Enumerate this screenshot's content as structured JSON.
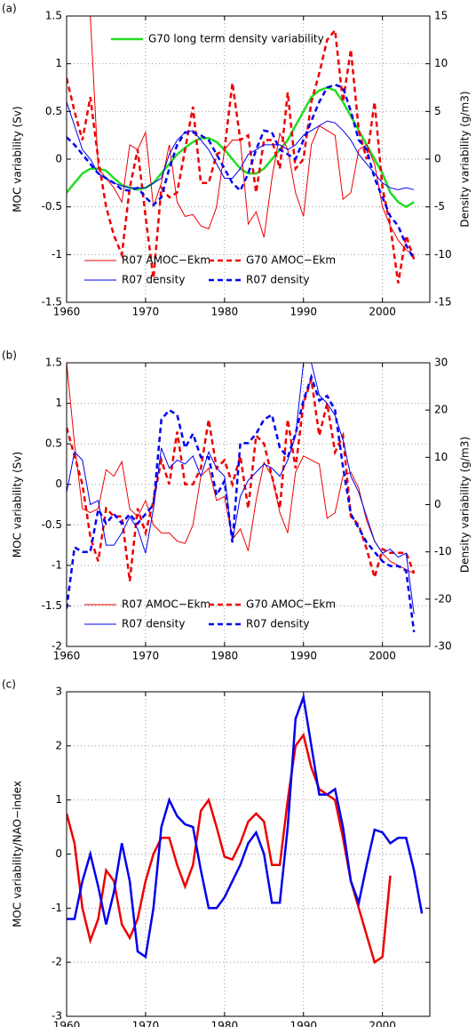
{
  "chart_data": [
    {
      "type": "line",
      "label": "(a)",
      "ylabel": "MOC variability (Sv)",
      "y2label": "Density variability (g/m3)",
      "xlim": [
        1960,
        2006
      ],
      "xticks": [
        1960,
        1970,
        1980,
        1990,
        2000
      ],
      "ylim": [
        -1.5,
        1.5
      ],
      "yticks": [
        -1.5,
        -1,
        -0.5,
        0,
        0.5,
        1,
        1.5
      ],
      "y2lim": [
        -15,
        15
      ],
      "y2ticks": [
        -15,
        -10,
        -5,
        0,
        5,
        10,
        15
      ],
      "grid": true,
      "legend": "lower center",
      "x": [
        1960,
        1961,
        1962,
        1963,
        1964,
        1965,
        1966,
        1967,
        1968,
        1969,
        1970,
        1971,
        1972,
        1973,
        1974,
        1975,
        1976,
        1977,
        1978,
        1979,
        1980,
        1981,
        1982,
        1983,
        1984,
        1985,
        1986,
        1987,
        1988,
        1989,
        1990,
        1991,
        1992,
        1993,
        1994,
        1995,
        1996,
        1997,
        1998,
        1999,
        2000,
        2001,
        2002,
        2003,
        2004
      ],
      "series": [
        {
          "name": "G70 long term density variability",
          "color": "#22dd22",
          "width": 2.5,
          "legend": "upper left",
          "values": [
            -0.35,
            -0.25,
            -0.15,
            -0.1,
            -0.1,
            -0.12,
            -0.2,
            -0.27,
            -0.3,
            -0.32,
            -0.3,
            -0.25,
            -0.15,
            -0.05,
            0.05,
            0.12,
            0.18,
            0.22,
            0.22,
            0.18,
            0.1,
            0.0,
            -0.1,
            -0.15,
            -0.15,
            -0.1,
            0.0,
            0.1,
            0.2,
            0.35,
            0.5,
            0.65,
            0.72,
            0.75,
            0.72,
            0.6,
            0.45,
            0.3,
            0.15,
            0.0,
            -0.15,
            -0.35,
            -0.45,
            -0.5,
            -0.45
          ]
        },
        {
          "name": "R07 AMOC−Ekm",
          "color": "#ee0000",
          "width": 1,
          "values": [
            3.0,
            2.5,
            2.0,
            1.5,
            -0.1,
            -0.2,
            -0.3,
            -0.45,
            0.15,
            0.1,
            0.28,
            -0.5,
            -0.25,
            0.15,
            -0.45,
            -0.6,
            -0.58,
            -0.7,
            -0.73,
            -0.5,
            0.1,
            0.2,
            0.2,
            -0.68,
            -0.55,
            -0.82,
            -0.2,
            0.27,
            0.1,
            -0.35,
            -0.6,
            0.15,
            0.35,
            0.3,
            0.25,
            -0.42,
            -0.35,
            0.1,
            0.15,
            -0.05,
            -0.5,
            -0.7,
            -0.85,
            -0.95,
            -1.0
          ]
        },
        {
          "name": "G70 AMOC−Ekm",
          "color": "#ee0000",
          "width": 2.5,
          "dash": true,
          "axis": "y2",
          "values": [
            8.5,
            5,
            2,
            6.5,
            0,
            -5,
            -8,
            -10,
            -3,
            1,
            -6,
            -12.5,
            -3,
            -4,
            -3.5,
            1,
            5.5,
            -2.5,
            -2.5,
            0.5,
            1,
            8,
            2,
            2.5,
            -3.5,
            2,
            2,
            -1,
            7,
            -1,
            0,
            6,
            9,
            12.5,
            13.5,
            6,
            11.5,
            3,
            0,
            6,
            -3,
            -7,
            -13,
            -8,
            -10.5
          ]
        },
        {
          "name": "R07 density",
          "color": "#0000ee",
          "width": 1,
          "values": [
            0.6,
            0.35,
            0.1,
            0.0,
            -0.15,
            -0.2,
            -0.25,
            -0.28,
            -0.3,
            -0.3,
            -0.3,
            -0.25,
            -0.2,
            0.05,
            0.2,
            0.28,
            0.3,
            0.2,
            0.1,
            -0.05,
            -0.2,
            -0.2,
            -0.1,
            0.05,
            0.1,
            0.15,
            0.15,
            0.15,
            0.1,
            0.15,
            0.25,
            0.3,
            0.35,
            0.4,
            0.38,
            0.3,
            0.2,
            0.05,
            -0.05,
            -0.15,
            -0.25,
            -0.3,
            -0.32,
            -0.3,
            -0.32
          ]
        },
        {
          "name": "R07 density",
          "color": "#0000ee",
          "width": 2.5,
          "dash": true,
          "axis": "y2",
          "values": [
            2.3,
            1.5,
            0.5,
            -0.5,
            -1.5,
            -2,
            -2.5,
            -3.2,
            -3.3,
            -3,
            -4,
            -4.8,
            -4,
            -1,
            1.5,
            2.8,
            2.8,
            2.5,
            2,
            0.5,
            -1,
            -2.5,
            -3.3,
            -1.5,
            1,
            3,
            2.8,
            1,
            0.5,
            0,
            2,
            4,
            6,
            7.5,
            7.8,
            7.5,
            5,
            2,
            1,
            -2,
            -4,
            -6,
            -7,
            -9,
            -10.5
          ]
        }
      ]
    },
    {
      "type": "line",
      "label": "(b)",
      "ylabel": "MOC variability (Sv)",
      "y2label": "Density variability (g/m3)",
      "xlim": [
        1960,
        2006
      ],
      "xticks": [
        1960,
        1970,
        1980,
        1990,
        2000
      ],
      "ylim": [
        -2,
        1.5
      ],
      "yticks": [
        -2,
        -1.5,
        -1,
        -0.5,
        0,
        0.5,
        1,
        1.5
      ],
      "y2lim": [
        -30,
        30
      ],
      "y2ticks": [
        -30,
        -20,
        -10,
        0,
        10,
        20,
        30
      ],
      "grid": true,
      "legend": "lower center",
      "x": [
        1960,
        1961,
        1962,
        1963,
        1964,
        1965,
        1966,
        1967,
        1968,
        1969,
        1970,
        1971,
        1972,
        1973,
        1974,
        1975,
        1976,
        1977,
        1978,
        1979,
        1980,
        1981,
        1982,
        1983,
        1984,
        1985,
        1986,
        1987,
        1988,
        1989,
        1990,
        1991,
        1992,
        1993,
        1994,
        1995,
        1996,
        1997,
        1998,
        1999,
        2000,
        2001,
        2002,
        2003,
        2004
      ],
      "series": [
        {
          "name": "R07 AMOC−Ekm",
          "color": "#ee0000",
          "width": 1,
          "values": [
            1.5,
            0.5,
            -0.3,
            -0.35,
            -0.3,
            0.18,
            0.1,
            0.28,
            -0.3,
            -0.4,
            -0.2,
            -0.5,
            -0.6,
            -0.6,
            -0.7,
            -0.73,
            -0.5,
            0.1,
            0.2,
            -0.2,
            -0.15,
            -0.68,
            -0.55,
            -0.82,
            -0.2,
            0.27,
            0.1,
            -0.35,
            -0.6,
            0.15,
            0.35,
            0.3,
            0.25,
            -0.42,
            -0.35,
            0.1,
            0.15,
            -0.05,
            -0.45,
            -0.7,
            -0.85,
            -0.95,
            -1.0,
            -1.05,
            -1.1
          ]
        },
        {
          "name": "G70 AMOC−Ekm",
          "color": "#ee0000",
          "width": 2.5,
          "dash": true,
          "axis": "y2",
          "values": [
            16.3,
            10.3,
            4.3,
            -6.8,
            -12,
            -0.8,
            -2.5,
            -2.5,
            -16.2,
            -0.8,
            -6,
            0.9,
            9.4,
            4.3,
            15.4,
            4.3,
            4.3,
            7.7,
            18,
            7.7,
            9.4,
            4.3,
            10.3,
            -0.8,
            14.6,
            12.9,
            6,
            -0.8,
            18,
            7.7,
            21.4,
            26.5,
            14.6,
            21.4,
            11.1,
            14.6,
            -2.5,
            -4.3,
            -9.4,
            -15.4,
            -9.4,
            -10.2,
            -10.2,
            -10.2,
            -14.5
          ]
        },
        {
          "name": "R07 density",
          "color": "#0000ee",
          "width": 1,
          "values": [
            -0.1,
            0.4,
            0.3,
            -0.25,
            -0.2,
            -0.75,
            -0.75,
            -0.6,
            -0.4,
            -0.55,
            -0.85,
            -0.3,
            0.45,
            0.2,
            0.3,
            0.25,
            0.35,
            0.1,
            0.4,
            0.2,
            0.1,
            -0.7,
            -0.15,
            0.05,
            0.15,
            0.25,
            0.2,
            0.1,
            0.3,
            0.6,
            1.5,
            1.5,
            1.1,
            1.0,
            0.85,
            0.55,
            0.1,
            -0.1,
            -0.4,
            -0.7,
            -0.85,
            -0.8,
            -0.9,
            -0.85,
            -1.6
          ]
        },
        {
          "name": "R07 density",
          "color": "#0000ee",
          "width": 2.5,
          "dash": true,
          "axis": "y2",
          "values": [
            -22,
            -9,
            -10,
            -10,
            -1,
            -4,
            -2,
            -4,
            -2,
            -4,
            -2,
            0,
            18,
            20,
            19,
            12,
            15,
            10,
            10,
            2,
            5,
            -8,
            13,
            13,
            15,
            18,
            19,
            12,
            10,
            15,
            22,
            27,
            22,
            23,
            20,
            8,
            -2,
            -5,
            -8,
            -10,
            -12,
            -13,
            -13,
            -14,
            -27
          ]
        }
      ]
    },
    {
      "type": "line",
      "label": "(c)",
      "ylabel": "MOC variability/NAO−index",
      "xlim": [
        1960,
        2006
      ],
      "xticks": [
        1960,
        1970,
        1980,
        1990,
        2000
      ],
      "ylim": [
        -3,
        3
      ],
      "yticks": [
        -3,
        -2,
        -1,
        0,
        1,
        2,
        3
      ],
      "grid": true,
      "x": [
        1960,
        1961,
        1962,
        1963,
        1964,
        1965,
        1966,
        1967,
        1968,
        1969,
        1970,
        1971,
        1972,
        1973,
        1974,
        1975,
        1976,
        1977,
        1978,
        1979,
        1980,
        1981,
        1982,
        1983,
        1984,
        1985,
        1986,
        1987,
        1988,
        1989,
        1990,
        1991,
        1992,
        1993,
        1994,
        1995,
        1996,
        1997,
        1998,
        1999,
        2000,
        2001,
        2002,
        2003,
        2004,
        2005
      ],
      "series": [
        {
          "color": "#ee0000",
          "width": 2.5,
          "values": [
            0.75,
            0.2,
            -1.0,
            -1.6,
            -1.2,
            -0.3,
            -0.5,
            -1.3,
            -1.55,
            -1.2,
            -0.5,
            0.0,
            0.3,
            0.3,
            -0.2,
            -0.6,
            -0.2,
            0.8,
            1.0,
            0.5,
            -0.05,
            -0.1,
            0.2,
            0.6,
            0.75,
            0.6,
            -0.2,
            -0.2,
            1.0,
            2.0,
            2.2,
            1.6,
            1.2,
            1.1,
            1.0,
            0.3,
            -0.5,
            -1.0,
            -1.5,
            -2.0,
            -1.9,
            -0.4,
            null,
            null,
            null,
            null
          ]
        },
        {
          "color": "#0000ee",
          "width": 2.5,
          "values": [
            -1.2,
            -1.2,
            -0.5,
            0.0,
            -0.6,
            -1.3,
            -0.7,
            0.2,
            -0.5,
            -1.8,
            -1.9,
            -1.0,
            0.5,
            1.0,
            0.7,
            0.55,
            0.5,
            -0.3,
            -1.0,
            -1.0,
            -0.8,
            -0.5,
            -0.2,
            0.2,
            0.4,
            0.0,
            -0.9,
            -0.9,
            0.5,
            2.5,
            2.9,
            2.0,
            1.1,
            1.1,
            1.2,
            0.5,
            -0.5,
            -0.9,
            -0.2,
            0.45,
            0.4,
            0.2,
            0.3,
            0.3,
            -0.3,
            -1.1
          ]
        }
      ]
    }
  ]
}
